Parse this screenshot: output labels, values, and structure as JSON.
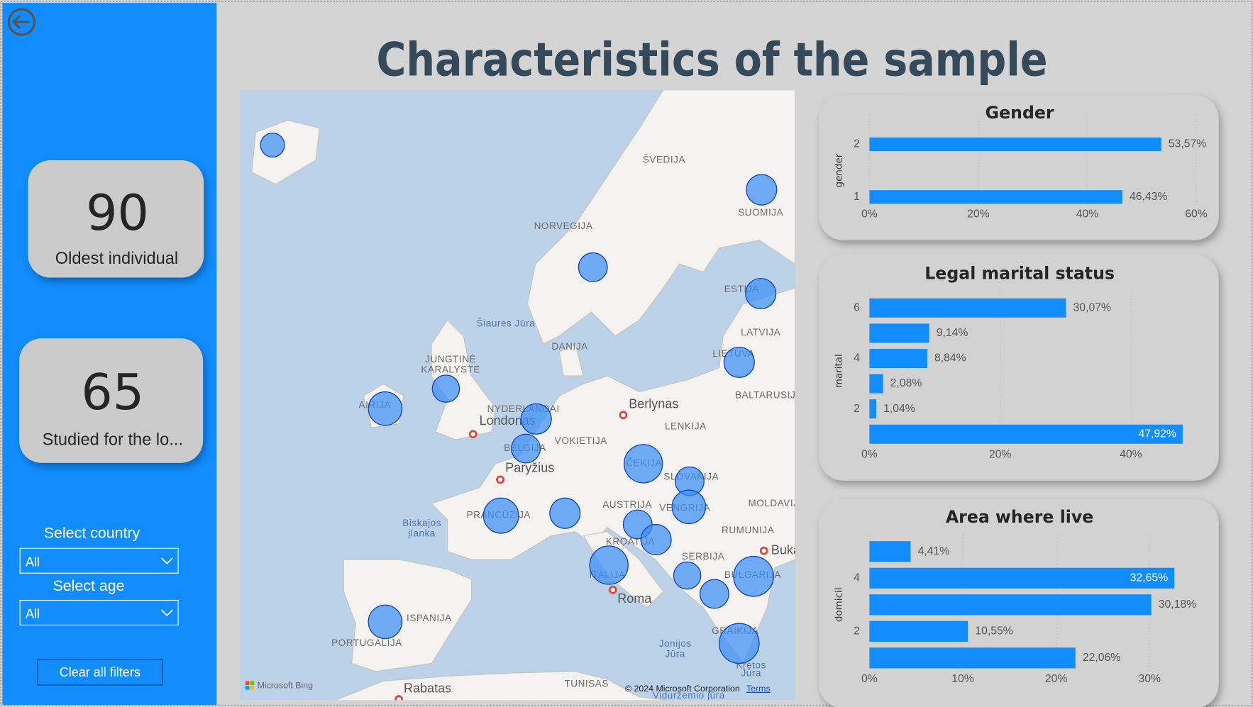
{
  "header": {
    "title": "Characteristics of the sample"
  },
  "cards": [
    {
      "value": 90,
      "label": "Oldest individual"
    },
    {
      "value": 65,
      "label": "Studied for the lo..."
    }
  ],
  "filters": [
    {
      "label": "Select country",
      "selected": "All"
    },
    {
      "label": "Select age",
      "selected": "All"
    }
  ],
  "clear_button": "Clear all filters",
  "map": {
    "labels": [
      "ŠVEDIJA",
      "SUOMIJA",
      "NORVEGIJA",
      "ESTIJA",
      "LATVIJA",
      "LIETUVA",
      "DANIJA",
      "Šiaures Jūra",
      "JUNGTINĖ",
      "KARALYSTĖ",
      "AIRIJA",
      "NYDERLANDAI",
      "Londonas",
      "BELGIJA",
      "VOKIETIJA",
      "Berlynas",
      "LENKIJA",
      "BALTARUSIJA",
      "Paryžius",
      "ČEKIJA",
      "SLOVAKIJA",
      "AUSTRIJA",
      "VENGRIJA",
      "MOLDAVIJA",
      "PRANCŪZIJA",
      "RUMUNIJA",
      "KROATIJA",
      "SERBIJA",
      "Bukareštas",
      "Biskajos",
      "įlanka",
      "ITALIJA",
      "BULGARIJA",
      "Roma",
      "ISPANIJA",
      "PORTUGALIJA",
      "GRAIKIJA",
      "Jonijos",
      "Jūra",
      "Kretos",
      "Jūra",
      "Rabatas",
      "TUNISAS",
      "Viduržemio jūra"
    ],
    "attribution": "© 2024 Microsoft Corporation",
    "terms": "Terms",
    "logo": "Microsoft Bing"
  },
  "chart_data": [
    {
      "type": "bar",
      "orientation": "horizontal",
      "title": "Gender",
      "y_label": "gender",
      "color": "#118dff",
      "grid": true,
      "categories": [
        "2",
        "1"
      ],
      "values": [
        53.57,
        46.43
      ],
      "value_labels": [
        "53,57%",
        "46,43%"
      ],
      "xlim": [
        0,
        60
      ],
      "xticks": [
        {
          "value": 0,
          "label": "0%"
        },
        {
          "value": 20,
          "label": "20%"
        },
        {
          "value": 40,
          "label": "40%"
        },
        {
          "value": 60,
          "label": "60%"
        }
      ]
    },
    {
      "type": "bar",
      "orientation": "horizontal",
      "title": "Legal marital status",
      "y_label": "marital",
      "color": "#118dff",
      "grid": true,
      "categories": [
        "6",
        null,
        "4",
        null,
        "2",
        null
      ],
      "values": [
        30.07,
        9.14,
        8.84,
        2.08,
        1.04,
        47.92
      ],
      "value_labels": [
        "30,07%",
        "9,14%",
        "8,84%",
        "2,08%",
        "1,04%",
        "47,92%"
      ],
      "xlim": [
        0,
        50
      ],
      "xticks": [
        {
          "value": 0,
          "label": "0%"
        },
        {
          "value": 20,
          "label": "20%"
        },
        {
          "value": 40,
          "label": "40%"
        }
      ]
    },
    {
      "type": "bar",
      "orientation": "horizontal",
      "title": "Area where live",
      "y_label": "domicil",
      "color": "#118dff",
      "grid": true,
      "categories": [
        null,
        "4",
        null,
        "2",
        null
      ],
      "values": [
        4.41,
        32.65,
        30.18,
        10.55,
        22.06
      ],
      "value_labels": [
        "4,41%",
        "32,65%",
        "30,18%",
        "10,55%",
        "22,06%"
      ],
      "xlim": [
        0,
        35
      ],
      "xticks": [
        {
          "value": 0,
          "label": "0%"
        },
        {
          "value": 10,
          "label": "10%"
        },
        {
          "value": 20,
          "label": "20%"
        },
        {
          "value": 30,
          "label": "30%"
        }
      ]
    }
  ]
}
